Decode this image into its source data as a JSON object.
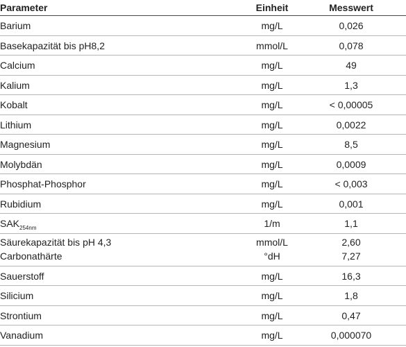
{
  "table": {
    "header": [
      "Parameter",
      "Einheit",
      "Messwert"
    ],
    "rows": [
      [
        "Barium",
        "mg/L",
        "0,026"
      ],
      [
        "Basekapazität bis pH8,2",
        "mmol/L",
        "0,078"
      ],
      [
        "Calcium",
        "mg/L",
        "49"
      ],
      [
        "Kalium",
        "mg/L",
        "1,3"
      ],
      [
        "Kobalt",
        "mg/L",
        "< 0,00005"
      ],
      [
        "Lithium",
        "mg/L",
        "0,0022"
      ],
      [
        "Magnesium",
        "mg/L",
        "8,5"
      ],
      [
        "Molybdän",
        "mg/L",
        "0,0009"
      ],
      [
        "Phosphat-Phosphor",
        "mg/L",
        "< 0,003"
      ],
      [
        "Rubidium",
        "mg/L",
        "0,001"
      ],
      [
        {
          "text": "SAK",
          "sub": "254nm"
        },
        "1/m",
        "1,1"
      ],
      [
        [
          "Säurekapazität bis pH 4,3",
          "Carbonathärte"
        ],
        [
          "mmol/L",
          "°dH"
        ],
        [
          "2,60",
          "7,27"
        ]
      ],
      [
        "Sauerstoff",
        "mg/L",
        "16,3"
      ],
      [
        "Silicium",
        "mg/L",
        "1,8"
      ],
      [
        "Strontium",
        "mg/L",
        "0,47"
      ],
      [
        "Vanadium",
        "mg/L",
        "0,000070"
      ]
    ]
  }
}
